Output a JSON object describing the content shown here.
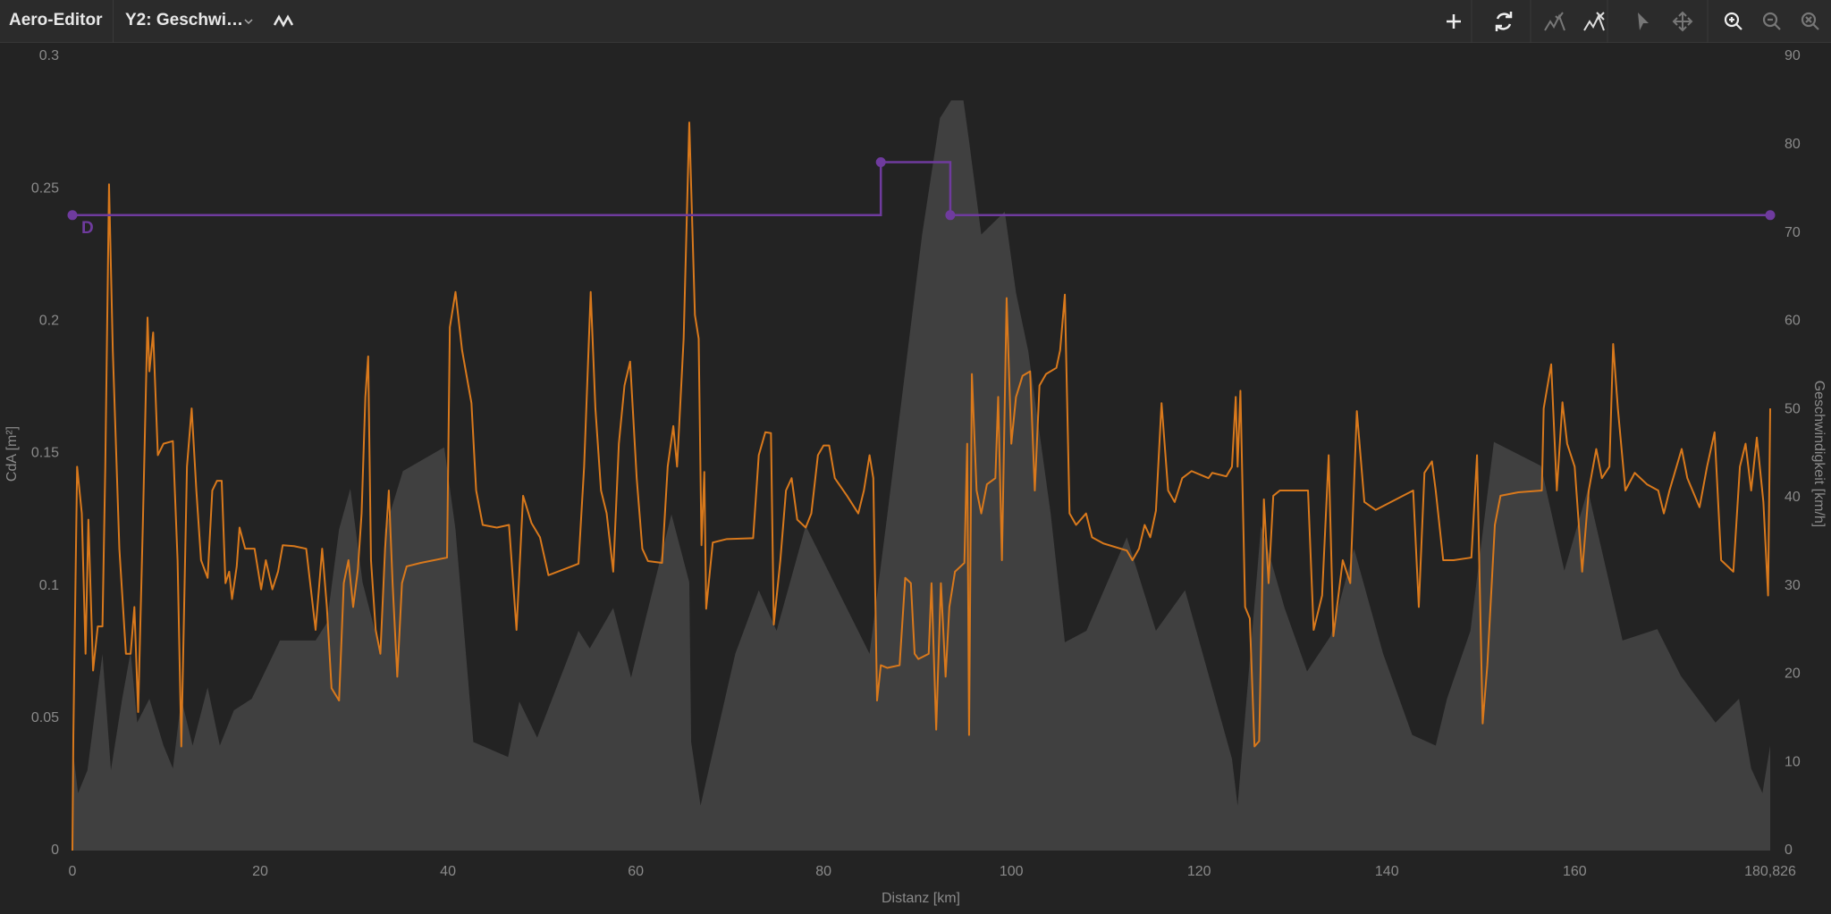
{
  "toolbar": {
    "app_title": "Aero-Editor",
    "y2_select": "Y2: Geschwi…"
  },
  "chart_data": {
    "type": "line",
    "xlabel": "Distanz [km]",
    "ylabel": "CdA [m²]",
    "y2label": "Geschwindigkeit [km/h]",
    "xlim": [
      0,
      180.826
    ],
    "xticks": [
      0,
      20,
      40,
      60,
      80,
      100,
      120,
      140,
      160,
      {
        "value": 180.826,
        "label": "180,826"
      }
    ],
    "ylim": [
      0,
      0.3
    ],
    "yticks": [
      0,
      0.05,
      0.1,
      0.15,
      0.2,
      0.25,
      0.3
    ],
    "y2lim": [
      0,
      90
    ],
    "y2ticks": [
      0,
      10,
      20,
      30,
      40,
      50,
      60,
      70,
      80,
      90
    ],
    "grid": false,
    "series": [
      {
        "type": "area",
        "color": "#404040",
        "axis": "y2",
        "x": [
          0,
          0.6,
          1.6,
          3.2,
          4.1,
          5.3,
          6.2,
          6.9,
          8.2,
          9.7,
          10.7,
          11.6,
          12.8,
          14.4,
          15.7,
          17.2,
          19.1,
          20.3,
          22.1,
          25.9,
          27.1,
          28.4,
          29.6,
          30.9,
          32.8,
          33.3,
          35.2,
          39.6,
          40.8,
          42.7,
          46.4,
          47.6,
          49.5,
          53.9,
          55.1,
          57.6,
          59.5,
          63.8,
          65.7,
          65.9,
          66.9,
          70.6,
          73.1,
          75.0,
          78.1,
          81.8,
          84.9,
          86.8,
          90.5,
          92.4,
          93.6,
          94.9,
          95.5,
          96.8,
          99.3,
          100.5,
          101.8,
          104.2,
          105.7,
          108.0,
          112.3,
          115.4,
          118.5,
          123.5,
          124.1,
          126.6,
          129.1,
          131.5,
          134.0,
          136.5,
          139.6,
          142.7,
          145.2,
          146.4,
          148.9,
          151.4,
          156.4,
          158.9,
          161.4,
          165.1,
          168.8,
          171.3,
          175.0,
          177.5,
          178.8,
          180.0,
          180.826
        ],
        "values": [
          11.8,
          6.5,
          9.1,
          22.3,
          9.1,
          17.2,
          22.5,
          14.5,
          17.2,
          11.9,
          9.3,
          17.2,
          11.9,
          18.5,
          11.9,
          15.9,
          17.2,
          19.8,
          23.8,
          23.8,
          25.8,
          36.4,
          41.0,
          30.4,
          22.5,
          36.4,
          43.0,
          45.7,
          36.4,
          12.3,
          10.6,
          16.9,
          12.8,
          24.9,
          22.9,
          27.5,
          19.6,
          38.1,
          30.4,
          12.3,
          5.1,
          22.3,
          29.5,
          24.9,
          36.8,
          28.9,
          22.3,
          38.1,
          69.8,
          83.0,
          85.0,
          85.0,
          80.4,
          69.8,
          72.4,
          63.2,
          56.6,
          38.1,
          23.6,
          24.9,
          35.5,
          24.9,
          29.5,
          10.4,
          5.1,
          36.8,
          27.5,
          20.3,
          24.3,
          34.2,
          22.3,
          13.1,
          11.9,
          17.2,
          24.9,
          46.3,
          43.6,
          31.7,
          40.9,
          23.8,
          25.1,
          19.8,
          14.5,
          17.2,
          9.3,
          6.5,
          11.9
        ]
      },
      {
        "type": "line",
        "color": "#d9791c",
        "axis": "y2",
        "x": [
          0,
          0.1,
          0.5,
          1.0,
          1.4,
          1.7,
          2.2,
          2.7,
          3.2,
          3.5,
          3.9,
          4.3,
          5.0,
          5.7,
          6.2,
          6.6,
          7.0,
          7.5,
          8.0,
          8.2,
          8.6,
          9.1,
          9.7,
          10.7,
          11.2,
          11.6,
          12.2,
          12.7,
          13.2,
          13.7,
          14.4,
          14.9,
          15.4,
          15.9,
          16.3,
          16.7,
          17.0,
          17.5,
          17.8,
          18.4,
          19.4,
          20.1,
          20.6,
          21.3,
          21.9,
          22.4,
          23.6,
          24.9,
          25.9,
          26.6,
          27.1,
          27.6,
          28.4,
          28.9,
          29.4,
          29.9,
          30.4,
          30.8,
          31.2,
          31.5,
          31.8,
          32.3,
          32.8,
          33.3,
          33.7,
          34.1,
          34.6,
          35.1,
          35.6,
          37.1,
          39.9,
          40.2,
          40.8,
          41.5,
          42.5,
          43.0,
          43.7,
          45.2,
          46.5,
          47.3,
          48.0,
          48.9,
          49.8,
          50.7,
          53.9,
          54.5,
          55.2,
          55.7,
          56.3,
          56.9,
          57.6,
          58.2,
          58.8,
          59.4,
          60.1,
          60.7,
          61.3,
          62.8,
          63.4,
          64.0,
          64.4,
          65.1,
          65.7,
          66.3,
          66.7,
          67.0,
          67.3,
          67.5,
          68.2,
          69.7,
          72.5,
          73.1,
          73.8,
          74.4,
          74.7,
          75.4,
          76.0,
          76.6,
          77.2,
          78.1,
          78.7,
          79.4,
          80.0,
          80.6,
          81.2,
          82.5,
          83.7,
          84.3,
          84.9,
          85.3,
          85.7,
          86.1,
          86.8,
          88.1,
          88.7,
          89.3,
          89.7,
          90.1,
          91.2,
          91.5,
          92.0,
          92.5,
          93.0,
          93.4,
          94.0,
          95.0,
          95.3,
          95.5,
          95.8,
          96.3,
          96.8,
          97.4,
          98.3,
          98.6,
          99.0,
          99.5,
          100.0,
          100.5,
          101.2,
          102.0,
          102.5,
          103.0,
          103.7,
          104.8,
          105.2,
          105.7,
          106.2,
          106.9,
          107.96,
          108.6,
          109.8,
          112.3,
          112.9,
          113.6,
          114.2,
          114.8,
          115.4,
          116.0,
          116.7,
          117.4,
          118.2,
          119.2,
          121.0,
          121.4,
          122.9,
          123.5,
          123.9,
          124.1,
          124.4,
          124.9,
          125.4,
          125.9,
          126.4,
          126.9,
          127.4,
          127.9,
          128.6,
          131.6,
          132.2,
          133.1,
          133.8,
          134.3,
          135.3,
          136.1,
          136.8,
          137.6,
          138.8,
          142.8,
          143.4,
          144.0,
          144.8,
          145.2,
          146.0,
          147.1,
          149.0,
          149.6,
          150.2,
          150.7,
          151.5,
          152.1,
          154.0,
          156.5,
          156.7,
          157.5,
          158.1,
          158.7,
          159.2,
          160.0,
          160.8,
          161.5,
          162.3,
          162.9,
          163.7,
          164.1,
          164.6,
          165.4,
          166.4,
          167.7,
          168.9,
          169.5,
          170.1,
          171.4,
          172.0,
          173.3,
          174.1,
          174.9,
          175.6,
          176.9,
          177.6,
          178.2,
          178.8,
          179.4,
          180.1,
          180.6,
          180.826
        ],
        "values": [
          0,
          13.1,
          43.5,
          38.2,
          22.3,
          37.5,
          20.4,
          25.4,
          25.4,
          43.5,
          75.5,
          56.7,
          34.2,
          22.3,
          22.3,
          27.6,
          15.7,
          36.9,
          60.4,
          54.3,
          58.7,
          44.8,
          46.1,
          46.4,
          32.9,
          11.8,
          43.5,
          50.1,
          40.8,
          32.9,
          30.9,
          40.8,
          41.9,
          41.9,
          30.3,
          31.6,
          28.5,
          32.2,
          36.6,
          34.2,
          34.2,
          29.6,
          32.9,
          29.6,
          31.6,
          34.6,
          34.5,
          34.2,
          25.0,
          34.2,
          27.6,
          18.4,
          17.0,
          30.3,
          32.9,
          27.6,
          31.8,
          38.2,
          51.4,
          56.0,
          32.9,
          25.0,
          22.3,
          34.2,
          40.8,
          30.3,
          19.7,
          30.3,
          32.2,
          32.6,
          33.2,
          59.3,
          63.3,
          56.7,
          50.7,
          40.8,
          36.9,
          36.6,
          36.9,
          25.0,
          40.2,
          37.1,
          35.5,
          31.2,
          32.5,
          43.5,
          63.3,
          50.1,
          40.8,
          38.2,
          31.6,
          46.1,
          52.7,
          55.4,
          42.2,
          34.2,
          32.8,
          32.6,
          43.5,
          48.1,
          43.5,
          58.0,
          82.5,
          60.7,
          58.0,
          34.6,
          42.9,
          27.4,
          34.9,
          35.3,
          35.4,
          44.8,
          47.4,
          47.3,
          25.6,
          32.9,
          40.8,
          42.2,
          37.5,
          36.6,
          38.2,
          44.8,
          45.9,
          45.9,
          42.2,
          40.2,
          38.2,
          40.8,
          44.8,
          42.2,
          17.0,
          21.0,
          20.7,
          21.0,
          30.9,
          30.3,
          22.3,
          21.7,
          22.3,
          30.3,
          13.7,
          30.3,
          19.7,
          27.6,
          31.6,
          32.6,
          46.1,
          13.1,
          54.0,
          40.8,
          38.2,
          41.5,
          42.2,
          51.4,
          32.9,
          62.6,
          46.1,
          51.4,
          53.8,
          54.3,
          40.8,
          52.7,
          54.0,
          54.7,
          56.7,
          63.0,
          38.2,
          36.9,
          38.2,
          35.5,
          34.8,
          34.0,
          32.9,
          34.2,
          36.9,
          35.5,
          38.5,
          50.7,
          40.8,
          39.5,
          42.2,
          43.0,
          42.2,
          42.8,
          42.4,
          43.5,
          51.4,
          43.5,
          52.1,
          27.6,
          26.3,
          11.8,
          12.4,
          39.8,
          30.3,
          40.2,
          40.8,
          40.8,
          25.0,
          28.9,
          44.8,
          24.3,
          32.9,
          30.3,
          49.8,
          39.5,
          38.6,
          40.8,
          27.6,
          42.8,
          44.1,
          40.8,
          32.9,
          32.9,
          33.2,
          44.8,
          14.4,
          21.0,
          36.9,
          40.2,
          40.6,
          40.8,
          50.1,
          55.1,
          40.8,
          50.8,
          46.1,
          43.5,
          31.6,
          40.8,
          45.5,
          42.2,
          43.5,
          57.4,
          50.1,
          40.8,
          42.8,
          41.5,
          40.8,
          38.2,
          40.8,
          45.5,
          42.2,
          38.9,
          43.5,
          47.4,
          32.9,
          31.6,
          43.5,
          46.1,
          40.8,
          46.8,
          39.5,
          28.9,
          50.1
        ]
      },
      {
        "type": "step",
        "color": "#6f3b9e",
        "markers": true,
        "x": [
          0,
          86.1,
          93.5,
          180.826
        ],
        "values": [
          0.24,
          0.26,
          0.24,
          0.24
        ],
        "point_labels": [
          "D",
          null,
          null,
          null
        ]
      }
    ]
  }
}
